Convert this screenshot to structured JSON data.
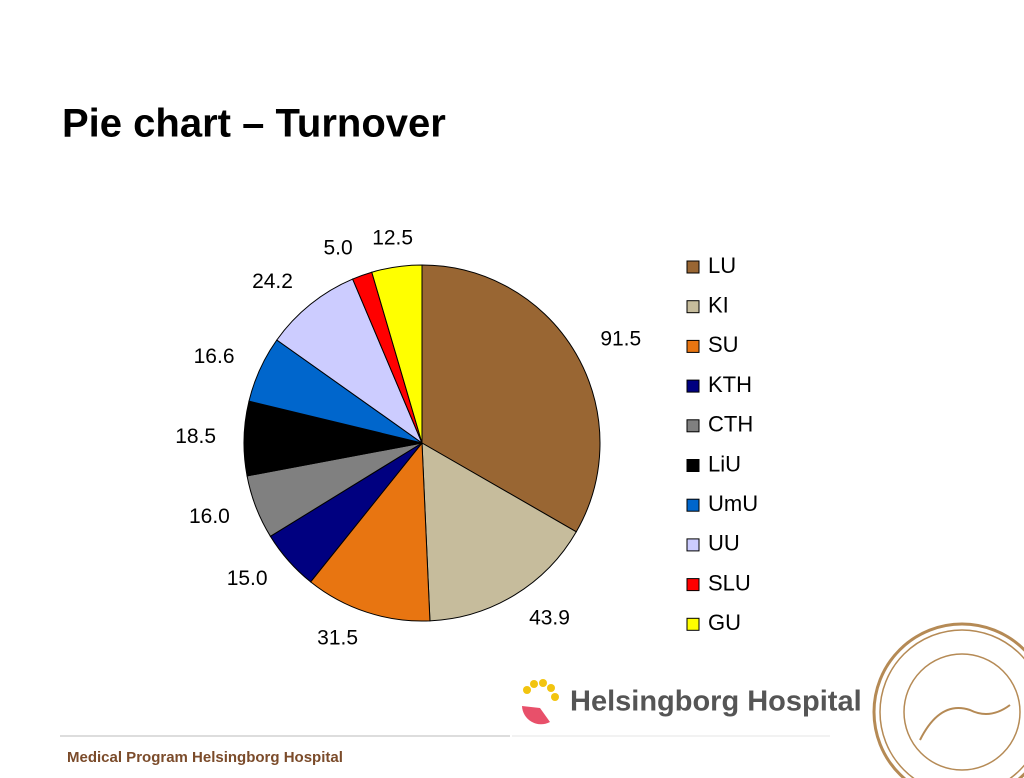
{
  "chart_data": {
    "type": "pie",
    "title": "Pie chart – Turnover",
    "categories": [
      "LU",
      "KI",
      "SU",
      "KTH",
      "CTH",
      "LiU",
      "UmU",
      "UU",
      "SLU",
      "GU"
    ],
    "values": [
      91.5,
      43.9,
      31.5,
      15.0,
      16.0,
      18.5,
      16.6,
      24.2,
      5.0,
      12.5
    ],
    "value_labels": [
      "91.5",
      "43.9",
      "31.5",
      "15.0",
      "16.0",
      "18.5",
      "16.6",
      "24.2",
      "5.0",
      "12.5"
    ],
    "colors": [
      "#996633",
      "#c6bc9c",
      "#e87511",
      "#000080",
      "#808080",
      "#000000",
      "#0066cc",
      "#ccccff",
      "#ff0000",
      "#ffff00"
    ],
    "legend": "right"
  },
  "logo": "Helsingborg Hospital",
  "footer": "Medical Program Helsingborg Hospital"
}
